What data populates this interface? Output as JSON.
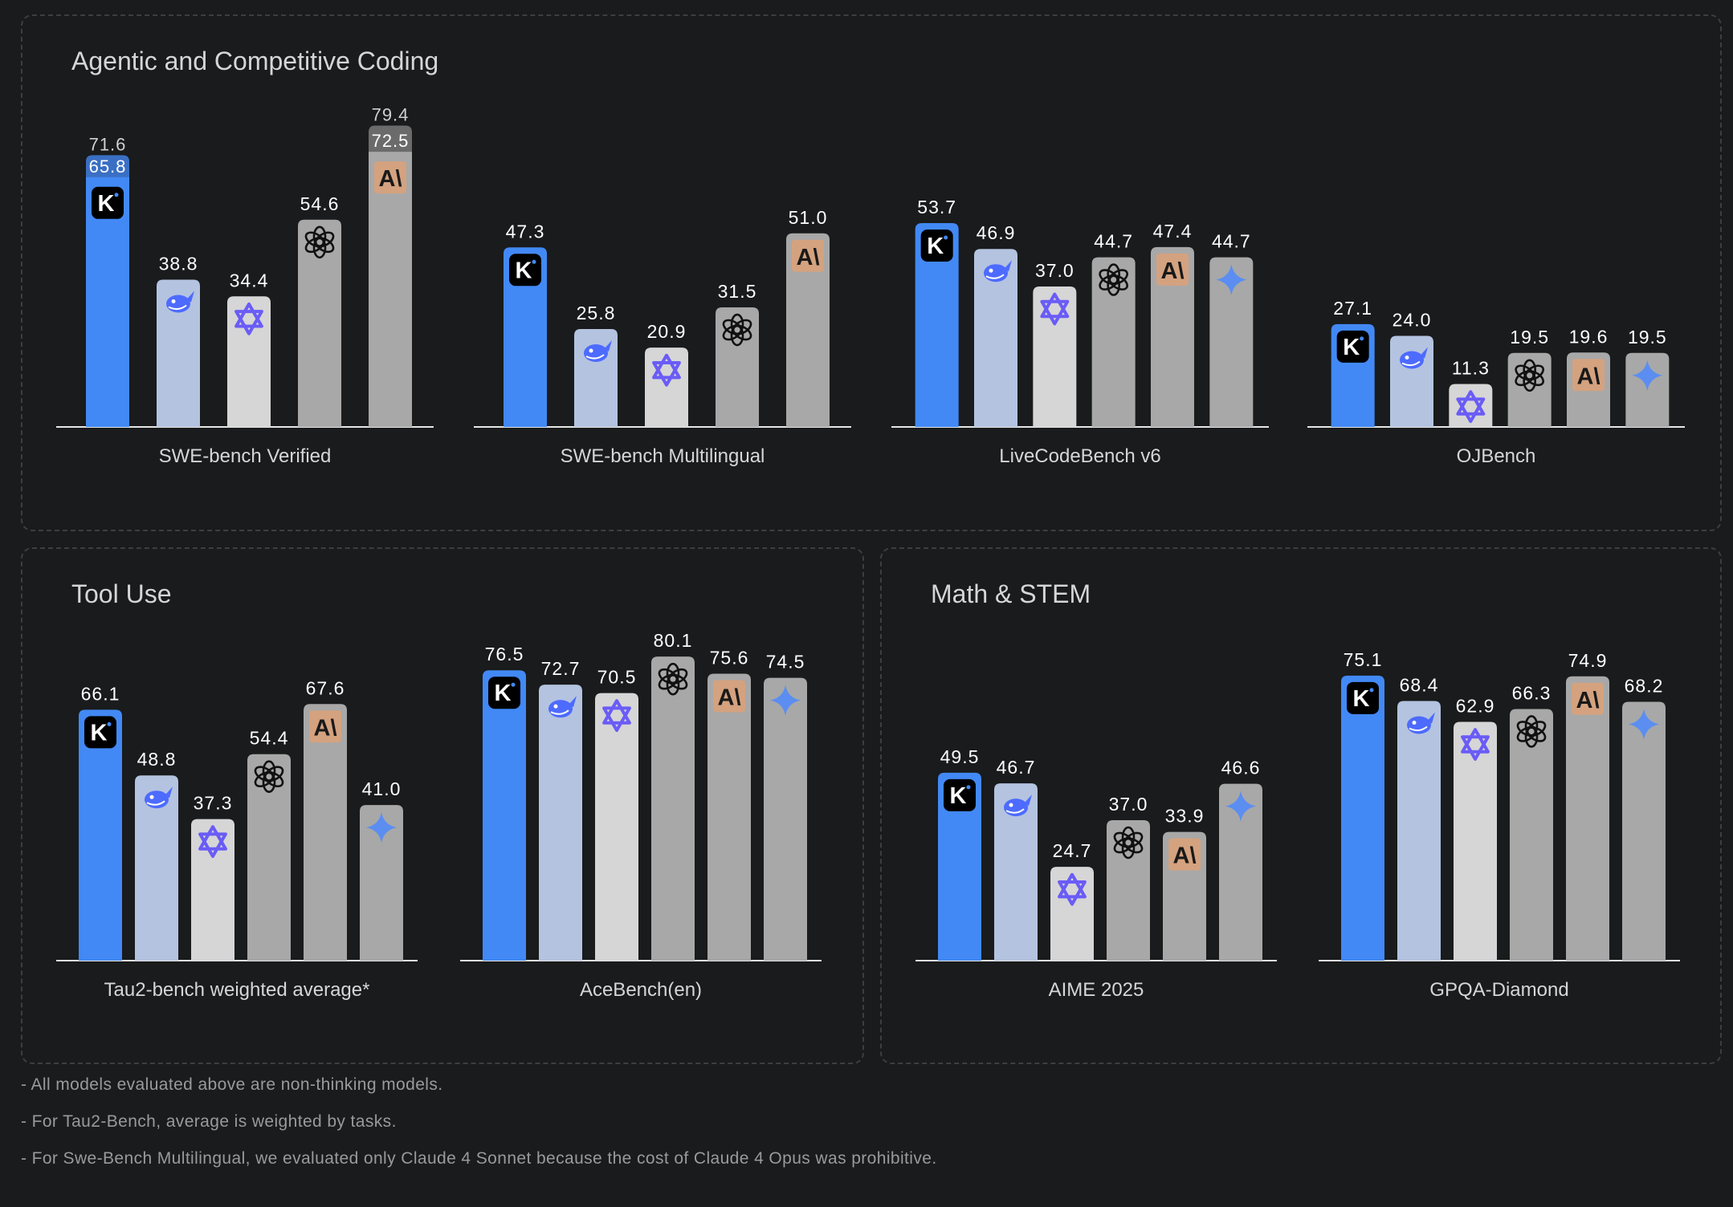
{
  "colors": {
    "kimi": "#4289f5",
    "deepseek": "#b4c3e0",
    "qwen": "#d6d6d6",
    "gpt": "#a8a8a8",
    "claude": "#a8a8a8",
    "gemini": "#a8a8a8",
    "stack_kimi": "#3a6fc4",
    "stack_claude": "#6b6b6b",
    "background": "#191b1c"
  },
  "panels": {
    "coding": {
      "title": "Agentic and Competitive Coding"
    },
    "tools": {
      "title": "Tool Use"
    },
    "math": {
      "title": "Math & STEM"
    }
  },
  "chart_data": [
    {
      "type": "bar",
      "xlabel": "SWE-bench Verified",
      "models": [
        "kimi",
        "deepseek",
        "qwen",
        "gpt",
        "claude"
      ],
      "icons": [
        "kimi-icon",
        "deepseek-icon",
        "qwen-icon",
        "openai-icon",
        "anthropic-icon"
      ],
      "values": [
        65.8,
        38.8,
        34.4,
        54.6,
        72.5
      ],
      "stacked_totals": [
        71.6,
        null,
        null,
        null,
        79.4
      ]
    },
    {
      "type": "bar",
      "xlabel": "SWE-bench Multilingual",
      "models": [
        "kimi",
        "deepseek",
        "qwen",
        "gpt",
        "claude"
      ],
      "icons": [
        "kimi-icon",
        "deepseek-icon",
        "qwen-icon",
        "openai-icon",
        "anthropic-icon"
      ],
      "values": [
        47.3,
        25.8,
        20.9,
        31.5,
        51.0
      ]
    },
    {
      "type": "bar",
      "xlabel": "LiveCodeBench v6",
      "models": [
        "kimi",
        "deepseek",
        "qwen",
        "gpt",
        "claude",
        "gemini"
      ],
      "icons": [
        "kimi-icon",
        "deepseek-icon",
        "qwen-icon",
        "openai-icon",
        "anthropic-icon",
        "gemini-icon"
      ],
      "values": [
        53.7,
        46.9,
        37.0,
        44.7,
        47.4,
        44.7
      ]
    },
    {
      "type": "bar",
      "xlabel": "OJBench",
      "models": [
        "kimi",
        "deepseek",
        "qwen",
        "gpt",
        "claude",
        "gemini"
      ],
      "icons": [
        "kimi-icon",
        "deepseek-icon",
        "qwen-icon",
        "openai-icon",
        "anthropic-icon",
        "gemini-icon"
      ],
      "values": [
        27.1,
        24.0,
        11.3,
        19.5,
        19.6,
        19.5
      ]
    },
    {
      "type": "bar",
      "xlabel": "Tau2-bench weighted average*",
      "models": [
        "kimi",
        "deepseek",
        "qwen",
        "gpt",
        "claude",
        "gemini"
      ],
      "icons": [
        "kimi-icon",
        "deepseek-icon",
        "qwen-icon",
        "openai-icon",
        "anthropic-icon",
        "gemini-icon"
      ],
      "values": [
        66.1,
        48.8,
        37.3,
        54.4,
        67.6,
        41.0
      ]
    },
    {
      "type": "bar",
      "xlabel": "AceBench(en)",
      "models": [
        "kimi",
        "deepseek",
        "qwen",
        "gpt",
        "claude",
        "gemini"
      ],
      "icons": [
        "kimi-icon",
        "deepseek-icon",
        "qwen-icon",
        "openai-icon",
        "anthropic-icon",
        "gemini-icon"
      ],
      "values": [
        76.5,
        72.7,
        70.5,
        80.1,
        75.6,
        74.5
      ]
    },
    {
      "type": "bar",
      "xlabel": "AIME 2025",
      "models": [
        "kimi",
        "deepseek",
        "qwen",
        "gpt",
        "claude",
        "gemini"
      ],
      "icons": [
        "kimi-icon",
        "deepseek-icon",
        "qwen-icon",
        "openai-icon",
        "anthropic-icon",
        "gemini-icon"
      ],
      "values": [
        49.5,
        46.7,
        24.7,
        37.0,
        33.9,
        46.6
      ]
    },
    {
      "type": "bar",
      "xlabel": "GPQA-Diamond",
      "models": [
        "kimi",
        "deepseek",
        "qwen",
        "gpt",
        "claude",
        "gemini"
      ],
      "icons": [
        "kimi-icon",
        "deepseek-icon",
        "qwen-icon",
        "openai-icon",
        "anthropic-icon",
        "gemini-icon"
      ],
      "values": [
        75.1,
        68.4,
        62.9,
        66.3,
        74.9,
        68.2
      ]
    }
  ],
  "footnotes": [
    "- All models evaluated above are non-thinking models.",
    "- For Tau2-Bench, average is weighted by tasks.",
    "- For Swe-Bench Multilingual, we evaluated only Claude 4 Sonnet because the cost of Claude 4 Opus was prohibitive."
  ]
}
